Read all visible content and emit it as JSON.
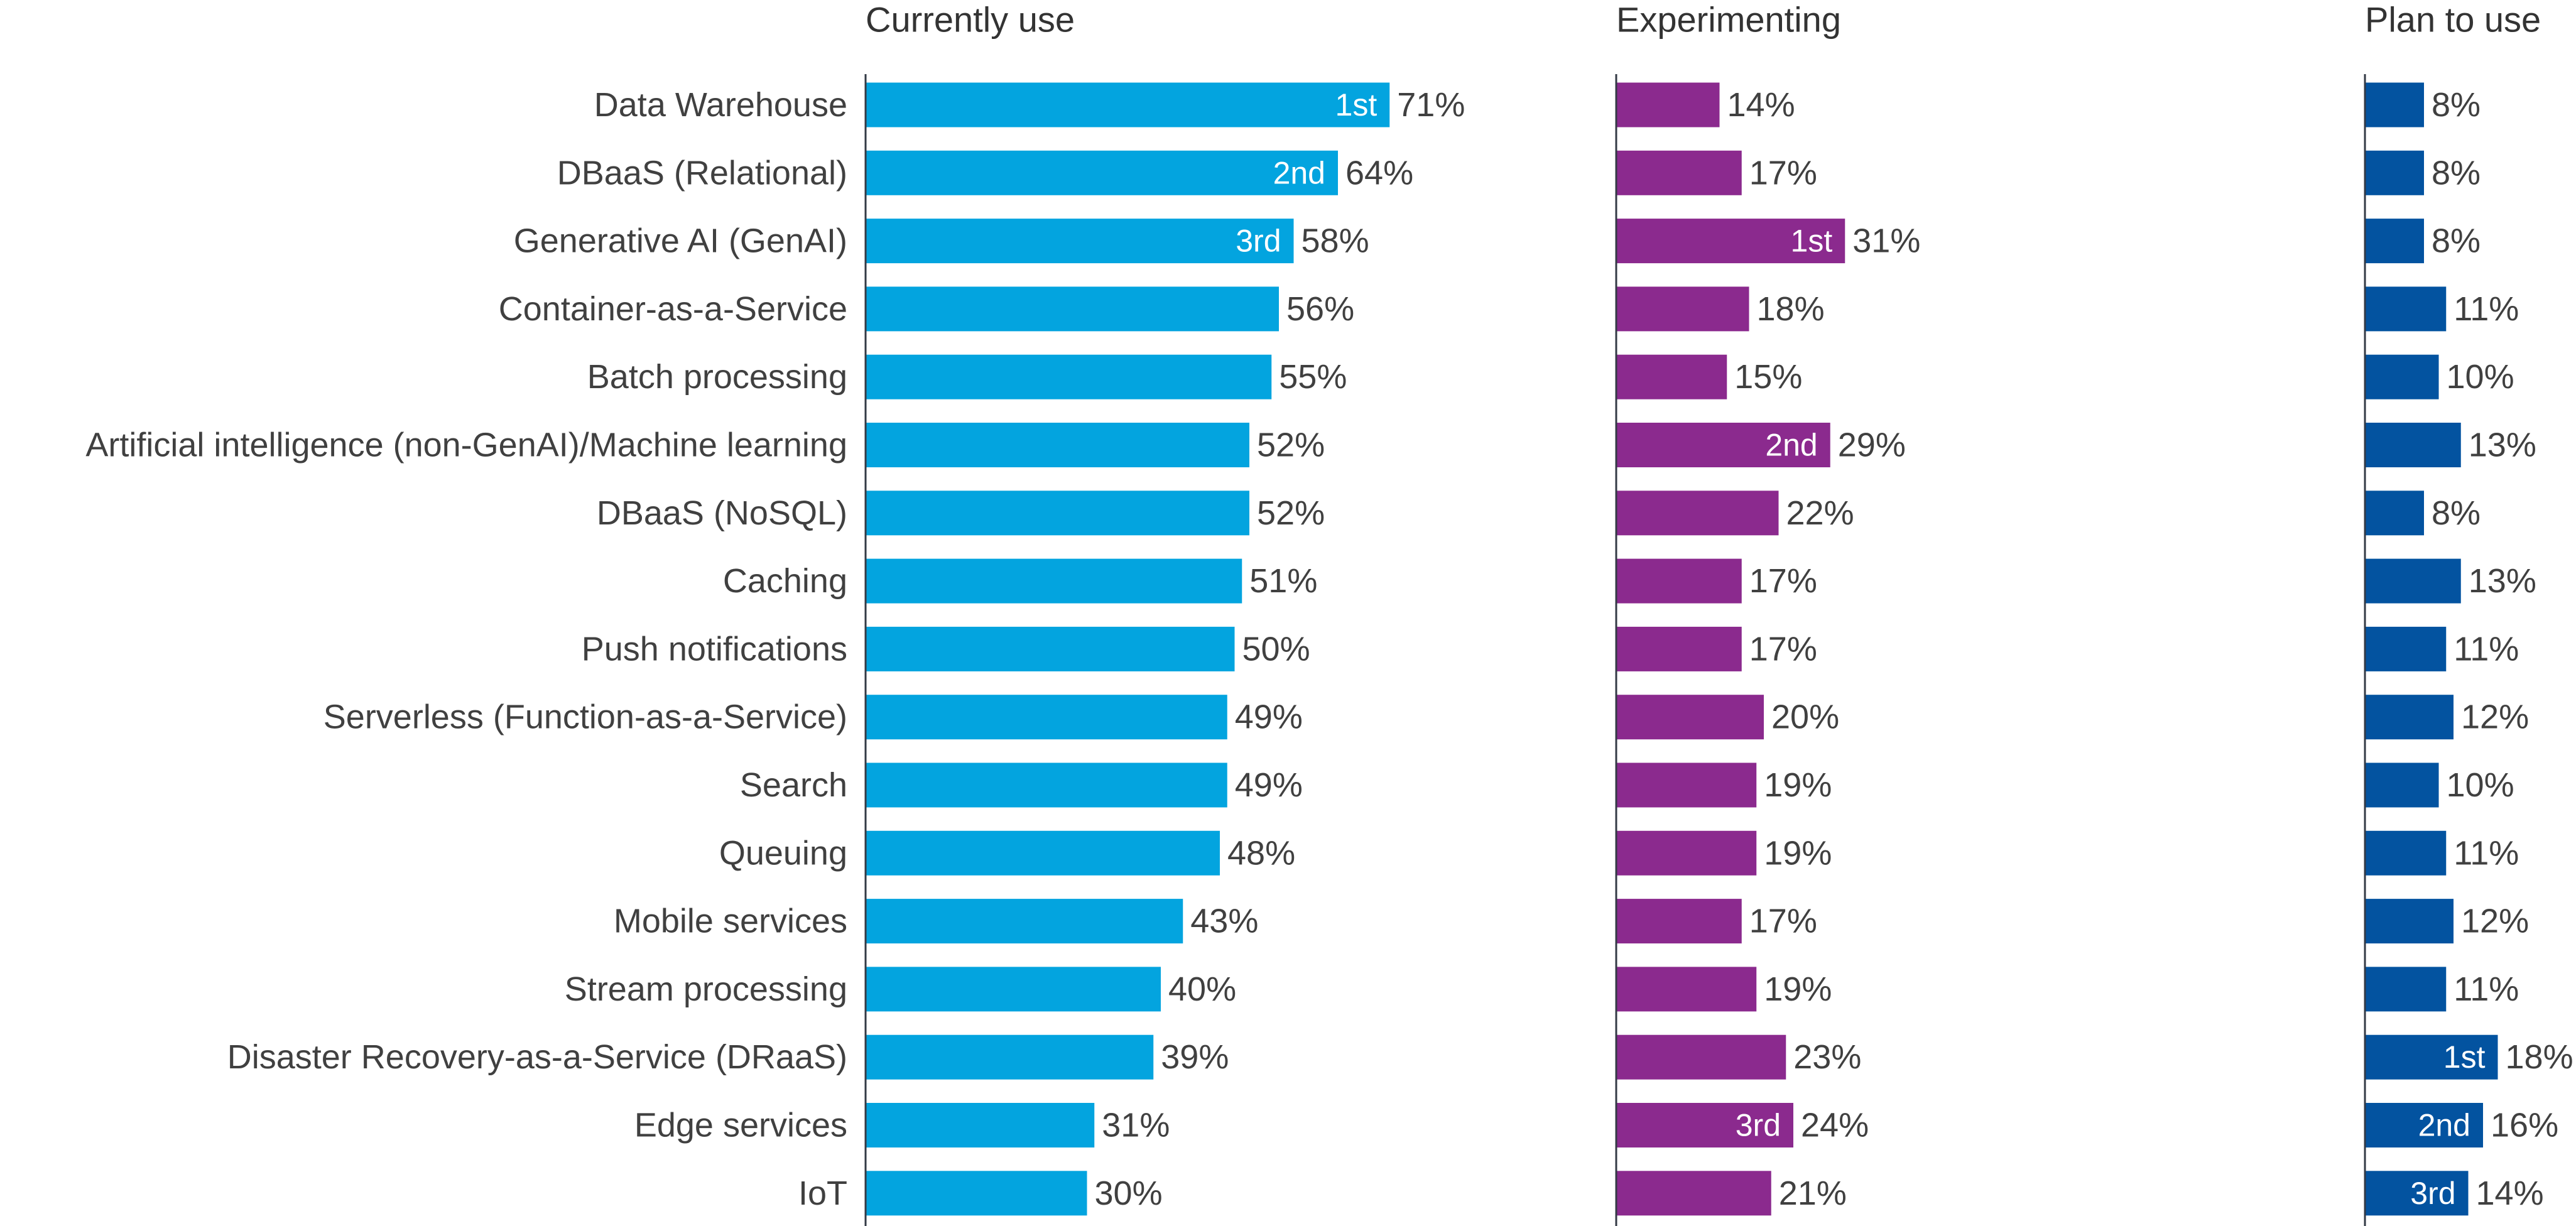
{
  "chart_data": {
    "type": "bar",
    "orientation": "horizontal",
    "unit": "%",
    "categories": [
      "Data Warehouse",
      "DBaaS (Relational)",
      "Generative AI (GenAI)",
      "Container-as-a-Service",
      "Batch processing",
      "Artificial intelligence (non-GenAI)/Machine learning",
      "DBaaS (NoSQL)",
      "Caching",
      "Push notifications",
      "Serverless (Function-as-a-Service)",
      "Search",
      "Queuing",
      "Mobile services",
      "Stream processing",
      "Disaster Recovery-as-a-Service (DRaaS)",
      "Edge services",
      "IoT"
    ],
    "series": [
      {
        "name": "Currently use",
        "color": "#03a4df",
        "values": [
          71,
          64,
          58,
          56,
          55,
          52,
          52,
          51,
          50,
          49,
          49,
          48,
          43,
          40,
          39,
          31,
          30
        ],
        "ranks": {
          "0": "1st",
          "1": "2nd",
          "2": "3rd"
        }
      },
      {
        "name": "Experimenting",
        "color": "#8b2a8e",
        "values": [
          14,
          17,
          31,
          18,
          15,
          29,
          22,
          17,
          17,
          20,
          19,
          19,
          17,
          19,
          23,
          24,
          21
        ],
        "ranks": {
          "2": "1st",
          "5": "2nd",
          "15": "3rd"
        }
      },
      {
        "name": "Plan to use",
        "color": "#0353a0",
        "values": [
          8,
          8,
          8,
          11,
          10,
          13,
          8,
          13,
          11,
          12,
          10,
          11,
          12,
          11,
          18,
          16,
          14
        ],
        "ranks": {
          "14": "1st",
          "15": "2nd",
          "16": "3rd"
        }
      }
    ],
    "xlim": [
      0,
      100
    ],
    "grid": false,
    "legend": "none"
  }
}
